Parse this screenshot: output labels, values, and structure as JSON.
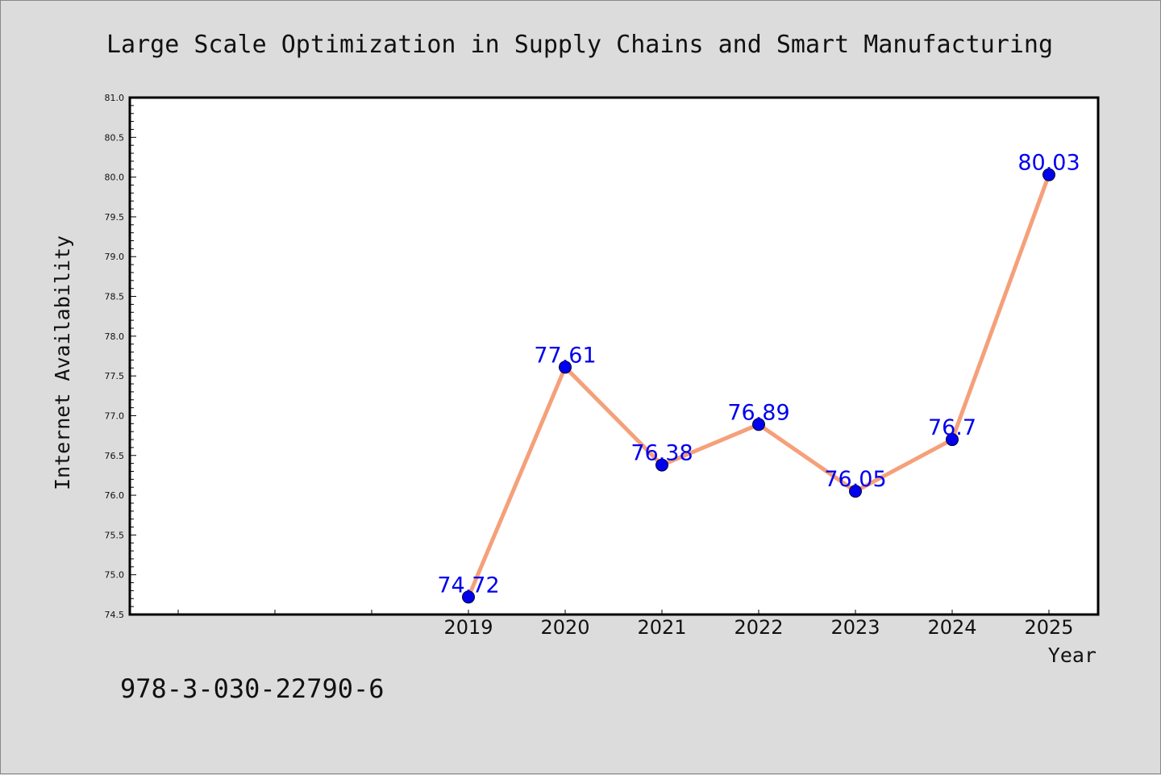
{
  "chart_data": {
    "type": "line",
    "title": "Large Scale Optimization in Supply Chains and Smart Manufacturing",
    "xlabel": "Year",
    "ylabel": "Internet Availability",
    "x": [
      "2019",
      "2020",
      "2021",
      "2022",
      "2023",
      "2024",
      "2025"
    ],
    "series": [
      {
        "values": [
          74.72,
          77.61,
          76.38,
          76.89,
          76.05,
          76.7,
          80.03
        ]
      }
    ],
    "data_labels": [
      "74.72",
      "77.61",
      "76.38",
      "76.89",
      "76.05",
      "76.7",
      "80.03"
    ],
    "ylim": [
      74.5,
      81.0
    ],
    "yticks": [
      "74.5",
      "75.0",
      "75.5",
      "76.0",
      "76.5",
      "77.0",
      "77.5",
      "78.0",
      "78.5",
      "79.0",
      "79.5",
      "80.0",
      "80.5",
      "81.0"
    ],
    "grid": false,
    "legend": "none",
    "colors": {
      "line": "#f5a07a",
      "marker": "#0000ee",
      "data_label": "#0000ee",
      "background": "#dcdcdc",
      "plot_background": "#ffffff"
    }
  },
  "footer": {
    "isbn": "978-3-030-22790-6"
  }
}
